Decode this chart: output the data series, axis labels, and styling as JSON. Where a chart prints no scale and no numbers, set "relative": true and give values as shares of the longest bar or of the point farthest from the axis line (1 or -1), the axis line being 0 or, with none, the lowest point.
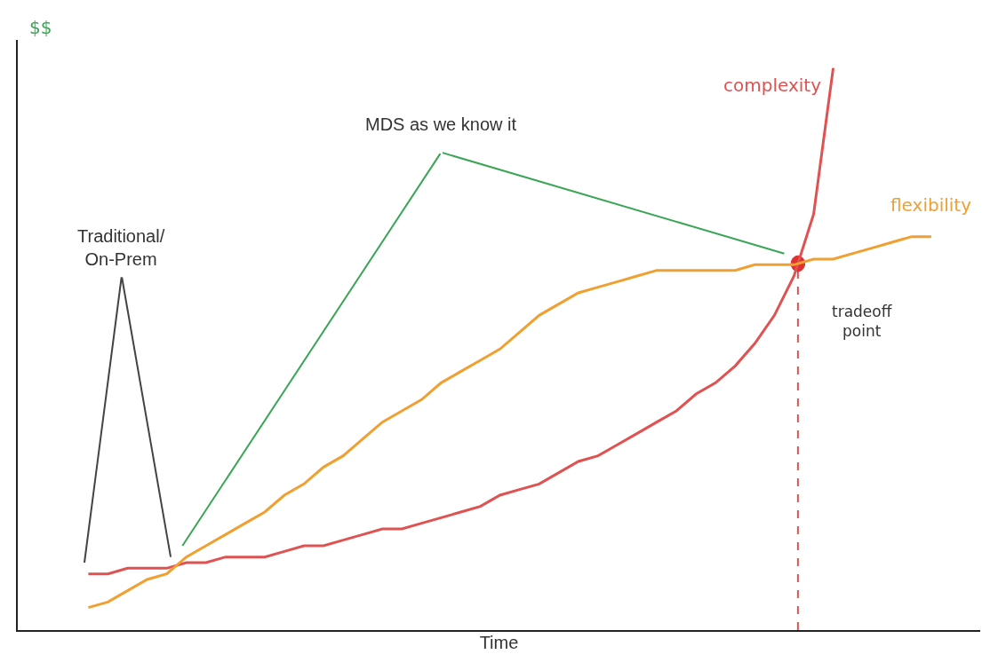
{
  "chart_data": {
    "type": "line",
    "relative": true,
    "xlabel": "Time",
    "ylabel": "$$",
    "categories": [
      null,
      null,
      null,
      null,
      null,
      null,
      null,
      null,
      null,
      null,
      null,
      null,
      null,
      null,
      null,
      null,
      null,
      null,
      null,
      null,
      null,
      null,
      null,
      null,
      null,
      null,
      null,
      null,
      null,
      null,
      null,
      null,
      null,
      null,
      null,
      null,
      null,
      null,
      null,
      null,
      null,
      null,
      null,
      null
    ],
    "series": [
      {
        "name": "complexity",
        "color": "#e05252",
        "values": [
          0.1,
          0.1,
          0.11,
          0.11,
          0.11,
          0.12,
          0.12,
          0.13,
          0.13,
          0.13,
          0.14,
          0.15,
          0.15,
          0.16,
          0.17,
          0.18,
          0.18,
          0.19,
          0.2,
          0.21,
          0.22,
          0.24,
          0.25,
          0.26,
          0.28,
          0.3,
          0.31,
          0.33,
          0.35,
          0.37,
          0.39,
          0.42,
          0.44,
          0.47,
          0.51,
          0.56,
          0.63,
          0.74,
          1.0,
          null,
          null,
          null,
          null,
          null
        ]
      },
      {
        "name": "flexibility",
        "color": "#f0a030",
        "values": [
          0.04,
          0.05,
          0.07,
          0.09,
          0.1,
          0.13,
          0.15,
          0.17,
          0.19,
          0.21,
          0.24,
          0.26,
          0.29,
          0.31,
          0.34,
          0.37,
          0.39,
          0.41,
          0.44,
          0.46,
          0.48,
          0.5,
          0.53,
          0.56,
          0.58,
          0.6,
          0.61,
          0.62,
          0.63,
          0.64,
          0.64,
          0.64,
          0.64,
          0.64,
          0.65,
          0.65,
          0.65,
          0.66,
          0.66,
          0.67,
          0.68,
          0.69,
          0.7,
          0.7
        ]
      }
    ],
    "annotations": [
      "MDS as we know it",
      "Traditional/\nOn-Prem",
      "tradeoff point"
    ],
    "marker": "none",
    "line_style": "solid",
    "grid": false,
    "legend": false
  }
}
